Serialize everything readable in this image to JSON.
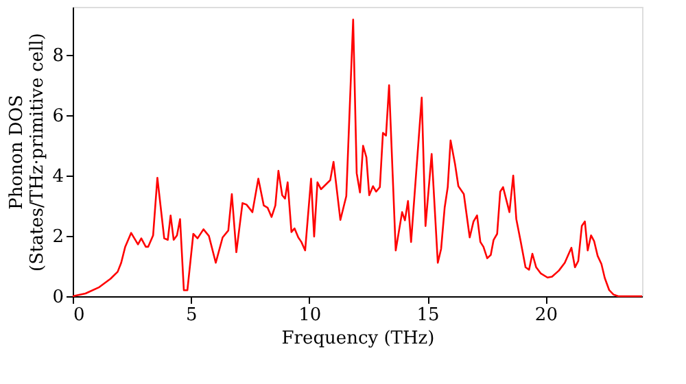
{
  "chart_data": {
    "type": "line",
    "xlabel": "Frequency (THz)",
    "ylabel": "Phonon DOS\n(States/THz·primitive cell)",
    "xlim": [
      0,
      24.08
    ],
    "ylim": [
      0,
      9.6
    ],
    "xticks": [
      0,
      5,
      10,
      15,
      20
    ],
    "yticks": [
      0,
      2,
      4,
      6,
      8
    ],
    "grid": false,
    "line_style": "solid",
    "x": [
      0,
      0.54,
      1.12,
      1.6,
      1.9,
      2.05,
      2.22,
      2.47,
      2.76,
      2.9,
      3.09,
      3.19,
      3.4,
      3.58,
      3.87,
      4.02,
      4.14,
      4.27,
      4.41,
      4.54,
      4.7,
      4.85,
      5.1,
      5.28,
      5.53,
      5.76,
      6.05,
      6.34,
      6.58,
      6.73,
      6.92,
      7.18,
      7.35,
      7.6,
      7.85,
      8.08,
      8.24,
      8.41,
      8.57,
      8.7,
      8.86,
      8.98,
      9.09,
      9.25,
      9.38,
      9.54,
      9.67,
      9.83,
      10.08,
      10.21,
      10.35,
      10.5,
      10.89,
      11.03,
      11.32,
      11.57,
      11.86,
      12.01,
      12.15,
      12.28,
      12.42,
      12.54,
      12.7,
      12.83,
      12.99,
      13.12,
      13.25,
      13.38,
      13.66,
      13.93,
      14.05,
      14.18,
      14.31,
      14.76,
      14.92,
      15.18,
      15.44,
      15.58,
      15.73,
      15.86,
      15.98,
      16.17,
      16.31,
      16.54,
      16.79,
      16.95,
      17.1,
      17.24,
      17.37,
      17.53,
      17.68,
      17.8,
      17.95,
      18.08,
      18.2,
      18.47,
      18.63,
      18.76,
      18.95,
      19.15,
      19.3,
      19.44,
      19.6,
      19.79,
      20.08,
      20.27,
      20.56,
      20.81,
      21.09,
      21.24,
      21.38,
      21.53,
      21.66,
      21.78,
      21.92,
      22.05,
      22.2,
      22.36,
      22.5,
      22.69,
      22.88,
      23.07,
      24.08
    ],
    "series": [
      {
        "color": "#ff0000",
        "values": [
          0,
          0.09,
          0.3,
          0.58,
          0.81,
          1.11,
          1.64,
          2.1,
          1.72,
          1.92,
          1.64,
          1.64,
          2.02,
          3.93,
          1.92,
          1.87,
          2.68,
          1.87,
          2.02,
          2.56,
          0.2,
          0.2,
          2.07,
          1.92,
          2.22,
          2.0,
          1.11,
          1.95,
          2.18,
          3.39,
          1.46,
          3.09,
          3.04,
          2.79,
          3.9,
          3.01,
          2.94,
          2.63,
          3.01,
          4.16,
          3.35,
          3.24,
          3.78,
          2.13,
          2.25,
          1.95,
          1.8,
          1.52,
          3.9,
          1.98,
          3.78,
          3.55,
          3.85,
          4.46,
          2.53,
          3.32,
          9.18,
          4.08,
          3.44,
          4.99,
          4.61,
          3.35,
          3.65,
          3.47,
          3.62,
          5.42,
          5.33,
          7.0,
          1.52,
          2.79,
          2.52,
          3.16,
          1.8,
          6.59,
          2.33,
          4.72,
          1.11,
          1.57,
          2.94,
          3.62,
          5.17,
          4.38,
          3.65,
          3.39,
          1.95,
          2.48,
          2.68,
          1.8,
          1.64,
          1.26,
          1.37,
          1.87,
          2.07,
          3.47,
          3.62,
          2.79,
          4.0,
          2.56,
          1.8,
          0.96,
          0.88,
          1.41,
          0.96,
          0.76,
          0.62,
          0.65,
          0.85,
          1.11,
          1.61,
          0.96,
          1.17,
          2.33,
          2.48,
          1.52,
          2.02,
          1.83,
          1.34,
          1.07,
          0.61,
          0.2,
          0.05,
          0,
          0
        ]
      }
    ]
  }
}
